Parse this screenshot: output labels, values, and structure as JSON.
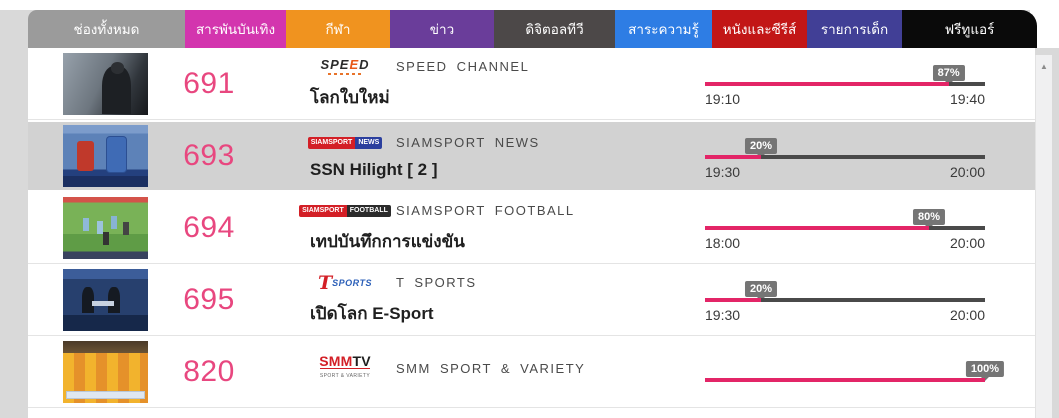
{
  "tab_bar": {
    "tabs": [
      {
        "label": "ช่องทั้งหมด",
        "color": "#9b9b9b",
        "active": false
      },
      {
        "label": "สารพันบันเทิง",
        "color": "#d335ae",
        "active": false
      },
      {
        "label": "กีฬา",
        "color": "#f0931f",
        "active": true
      },
      {
        "label": "ข่าว",
        "color": "#6a3d9a",
        "active": false
      },
      {
        "label": "ดิจิตอลทีวี",
        "color": "#4c4848",
        "active": false
      },
      {
        "label": "สาระความรู้",
        "color": "#2e7de4",
        "active": false
      },
      {
        "label": "หนังและซีรีส์",
        "color": "#c21616",
        "active": false
      },
      {
        "label": "รายการเด็ก",
        "color": "#413f96",
        "active": false
      },
      {
        "label": "ฟรีทูแอร์",
        "color": "#0a0a0a",
        "active": false
      }
    ]
  },
  "channel_list": {
    "rows": [
      {
        "number": "691",
        "logo": "speed",
        "channel_name": "SPEED CHANNEL",
        "program": "โลกใบใหม่",
        "progress": 87,
        "progress_label": "87%",
        "time_start": "19:10",
        "time_end": "19:40",
        "highlighted": false,
        "thumb": "camera-man",
        "show_times": true
      },
      {
        "number": "693",
        "logo": "siamsport-news",
        "channel_name": "SIAMSPORT NEWS",
        "program": "SSN Hilight [ 2 ]",
        "progress": 20,
        "progress_label": "20%",
        "time_start": "19:30",
        "time_end": "20:00",
        "highlighted": true,
        "thumb": "boxing",
        "show_times": true
      },
      {
        "number": "694",
        "logo": "siamsport-football",
        "channel_name": "SIAMSPORT FOOTBALL",
        "program": "เทปบันทึกการแข่งขัน",
        "progress": 80,
        "progress_label": "80%",
        "time_start": "18:00",
        "time_end": "20:00",
        "highlighted": false,
        "thumb": "football",
        "show_times": true
      },
      {
        "number": "695",
        "logo": "t-sports",
        "channel_name": "T SPORTS",
        "program": "เปิดโลก E-Sport",
        "progress": 20,
        "progress_label": "20%",
        "time_start": "19:30",
        "time_end": "20:00",
        "highlighted": false,
        "thumb": "studio",
        "show_times": true
      },
      {
        "number": "820",
        "logo": "smmtv",
        "channel_name": "SMM SPORT & VARIETY",
        "program": "",
        "progress": 100,
        "progress_label": "100%",
        "time_start": "",
        "time_end": "",
        "highlighted": false,
        "thumb": "team",
        "show_times": false
      }
    ]
  },
  "logos": {
    "speed": {
      "part1": "SPE",
      "accent": "E",
      "part2": "D"
    },
    "siamsport_news": {
      "left": "SIAMSPORT",
      "right": "NEWS"
    },
    "siamsport_football": {
      "left": "SIAMSPORT",
      "right": "FOOTBALL"
    },
    "t_sports": {
      "t": "T",
      "rest": "SPORTS"
    },
    "smmtv": {
      "smm": "SMM",
      "tv": "TV",
      "tagline": "SPORT & VARIETY"
    }
  },
  "colors": {
    "accent_number_pink": "#e8477f",
    "progress_fill_pink": "#e32567",
    "progress_rest_gray": "#4a4a4a",
    "badge_gray": "#757575",
    "highlight_row_gray": "#d2d2d2",
    "active_tab_orange": "#f0931f"
  },
  "scrollbar": {
    "up_arrow": "▲"
  }
}
